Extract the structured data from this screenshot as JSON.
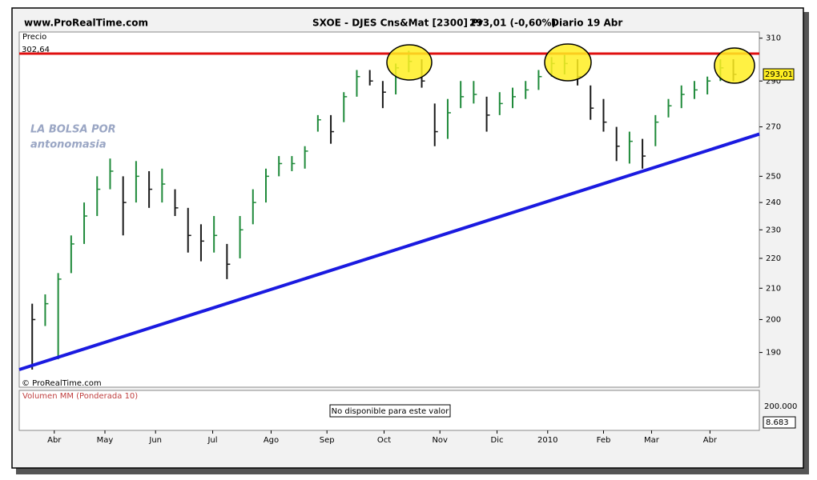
{
  "chart_data": {
    "type": "ohlc",
    "site": "www.ProRealTime.com",
    "title": "SXOE - DJES Cns&Mat [2300] Pr",
    "quote": "293,01 (-0,60%)",
    "period": "Diario  19 Abr",
    "price_panel_label": "Precio",
    "resistance_label": "302,64",
    "last_price_label": "293,01",
    "copyright": "© ProRealTime.com",
    "watermark": [
      "LA BOLSA POR",
      "antonomasia"
    ],
    "volume_panel_label": "Volumen MM (Ponderada 10)",
    "volume_message": "No disponible para este valor",
    "volume_ticks": [
      "200.000",
      "8.683"
    ],
    "log_scale": true,
    "xlim": [
      -1,
      56
    ],
    "ylim": [
      180,
      313
    ],
    "yticks": [
      190,
      200,
      210,
      220,
      230,
      240,
      250,
      270,
      290,
      310
    ],
    "xticks": [
      {
        "value": 1.7,
        "label": "Abr"
      },
      {
        "value": 5.6,
        "label": "May"
      },
      {
        "value": 9.5,
        "label": "Jun"
      },
      {
        "value": 13.9,
        "label": "Jul"
      },
      {
        "value": 18.4,
        "label": "Ago"
      },
      {
        "value": 22.7,
        "label": "Sep"
      },
      {
        "value": 27.1,
        "label": "Oct"
      },
      {
        "value": 31.4,
        "label": "Nov"
      },
      {
        "value": 35.8,
        "label": "Dic"
      },
      {
        "value": 39.7,
        "label": "2010"
      },
      {
        "value": 44.0,
        "label": "Feb"
      },
      {
        "value": 47.7,
        "label": "Mar"
      },
      {
        "value": 52.2,
        "label": "Abr"
      }
    ],
    "x": [
      0,
      1,
      2,
      3,
      4,
      5,
      6,
      7,
      8,
      9,
      10,
      11,
      12,
      13,
      14,
      15,
      16,
      17,
      18,
      19,
      20,
      21,
      22,
      23,
      24,
      25,
      26,
      27,
      28,
      29,
      30,
      31,
      32,
      33,
      34,
      35,
      36,
      37,
      38,
      39,
      40,
      41,
      42,
      43,
      44,
      45,
      46,
      47,
      48,
      49,
      50,
      51,
      52,
      53,
      54
    ],
    "high": [
      205,
      208,
      215,
      228,
      240,
      250,
      257,
      250,
      256,
      252,
      253,
      245,
      238,
      232,
      235,
      225,
      235,
      245,
      253,
      258,
      258,
      262,
      275,
      275,
      285,
      295,
      295,
      290,
      298,
      304,
      300,
      280,
      282,
      290,
      290,
      283,
      285,
      287,
      290,
      295,
      301,
      302,
      300,
      288,
      282,
      270,
      268,
      265,
      275,
      282,
      288,
      290,
      292,
      300,
      300
    ],
    "low": [
      185,
      198,
      188,
      215,
      225,
      235,
      245,
      228,
      240,
      238,
      240,
      235,
      222,
      219,
      222,
      213,
      220,
      232,
      240,
      250,
      252,
      253,
      268,
      263,
      272,
      283,
      288,
      278,
      284,
      294,
      287,
      262,
      265,
      278,
      280,
      268,
      275,
      278,
      282,
      286,
      292,
      293,
      288,
      273,
      268,
      256,
      255,
      253,
      262,
      274,
      278,
      282,
      284,
      290,
      290
    ],
    "close": [
      200,
      205,
      213,
      225,
      235,
      245,
      252,
      240,
      250,
      245,
      247,
      238,
      228,
      226,
      228,
      218,
      230,
      240,
      250,
      255,
      255,
      260,
      273,
      268,
      283,
      292,
      290,
      285,
      296,
      299,
      290,
      268,
      276,
      283,
      284,
      275,
      280,
      283,
      286,
      292,
      298,
      298,
      292,
      278,
      272,
      262,
      264,
      258,
      272,
      279,
      284,
      286,
      290,
      296,
      293
    ],
    "color": "#1a1a1a",
    "up_color": "#1f8a3a",
    "resistance": {
      "value": 302.64,
      "color": "#e01010"
    },
    "support": {
      "x": [
        -1,
        56
      ],
      "values": [
        185,
        267
      ],
      "color": "#1a1ae0"
    }
  }
}
